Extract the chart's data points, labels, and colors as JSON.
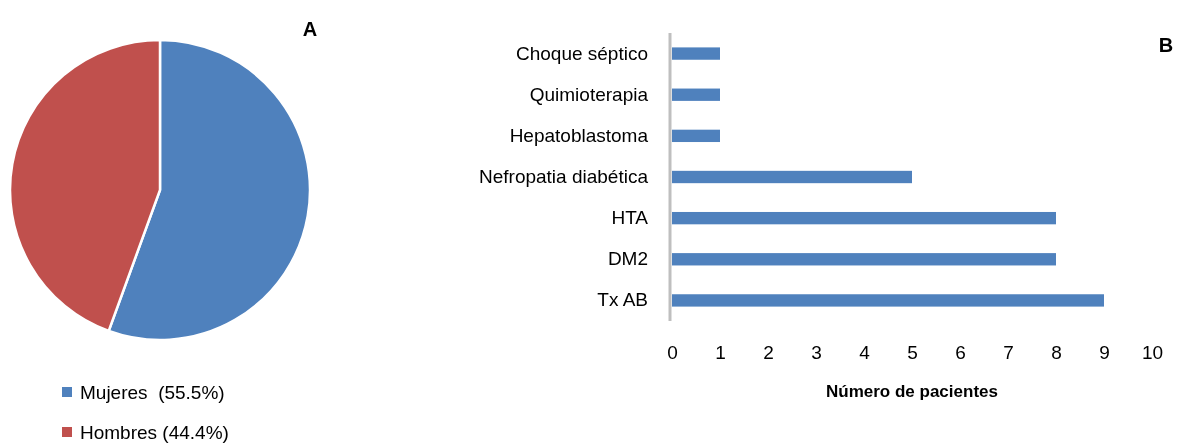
{
  "chart_data": [
    {
      "type": "pie",
      "title": "A",
      "categories": [
        "Mujeres  (55.5%)",
        "Hombres (44.4%)"
      ],
      "values": [
        55.5,
        44.4
      ],
      "colors": [
        "#4f81bd",
        "#c0504d"
      ],
      "legend": "bottom"
    },
    {
      "type": "bar",
      "title": "B",
      "orientation": "horizontal",
      "categories": [
        "Choque séptico",
        "Quimioterapia",
        "Hepatoblastoma",
        "Nefropatia diabética",
        "HTA",
        "DM2",
        "Tx AB"
      ],
      "values": [
        1,
        1,
        1,
        5,
        8,
        8,
        9
      ],
      "color": "#4f81bd",
      "xlim": [
        0,
        10
      ],
      "xticks": [
        0,
        1,
        2,
        3,
        4,
        5,
        6,
        7,
        8,
        9,
        10
      ],
      "xlabel": "Número de pacientes"
    }
  ]
}
